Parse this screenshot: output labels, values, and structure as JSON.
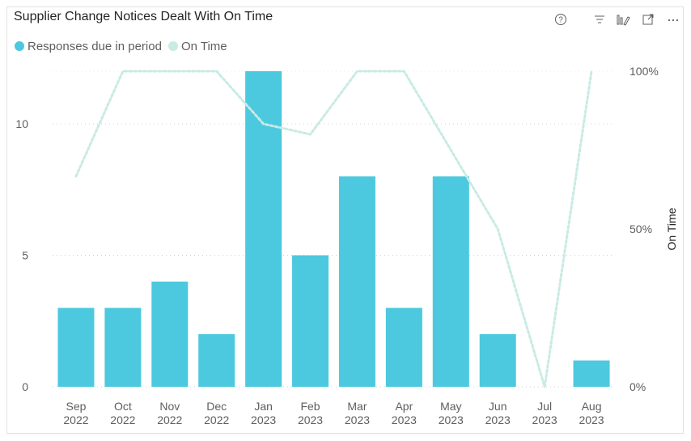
{
  "title": "Supplier Change Notices Dealt With On Time",
  "toolbar": {
    "icons": [
      "help-icon",
      "filter-icon",
      "focus-icon",
      "expand-icon",
      "more-icon"
    ]
  },
  "legend": {
    "items": [
      {
        "label": "Responses due in period",
        "color": "#4CC9DE"
      },
      {
        "label": "On Time",
        "color": "#C8EBE4"
      }
    ]
  },
  "colors": {
    "bar": "#4CC9DE",
    "line": "#C8EBE4",
    "grid": "#d0d0d0",
    "tick": "#605e5c"
  },
  "chart_data": {
    "type": "bar",
    "title": "Supplier Change Notices Dealt With On Time",
    "categories": [
      [
        "Sep",
        "2022"
      ],
      [
        "Oct",
        "2022"
      ],
      [
        "Nov",
        "2022"
      ],
      [
        "Dec",
        "2022"
      ],
      [
        "Jan",
        "2023"
      ],
      [
        "Feb",
        "2023"
      ],
      [
        "Mar",
        "2023"
      ],
      [
        "Apr",
        "2023"
      ],
      [
        "May",
        "2023"
      ],
      [
        "Jun",
        "2023"
      ],
      [
        "Jul",
        "2023"
      ],
      [
        "Aug",
        "2023"
      ]
    ],
    "series": [
      {
        "name": "Responses due in period",
        "type": "bar",
        "axis": "left",
        "values": [
          3,
          3,
          4,
          2,
          12,
          5,
          8,
          3,
          8,
          2,
          0,
          1
        ]
      },
      {
        "name": "On Time",
        "type": "line",
        "axis": "right",
        "style": "dotted",
        "values": [
          0.667,
          1.0,
          1.0,
          1.0,
          0.833,
          0.8,
          1.0,
          1.0,
          0.75,
          0.5,
          0.0,
          1.0
        ]
      }
    ],
    "left_axis": {
      "ylim": [
        0,
        12
      ],
      "ticks": [
        0,
        5,
        10
      ],
      "tick_labels": [
        "0",
        "5",
        "10"
      ]
    },
    "right_axis": {
      "ylim": [
        0,
        1
      ],
      "ticks": [
        0,
        0.5,
        1
      ],
      "tick_labels": [
        "0%",
        "50%",
        "100%"
      ],
      "label": "On Time"
    },
    "grid": true,
    "legend_position": "top-left"
  }
}
